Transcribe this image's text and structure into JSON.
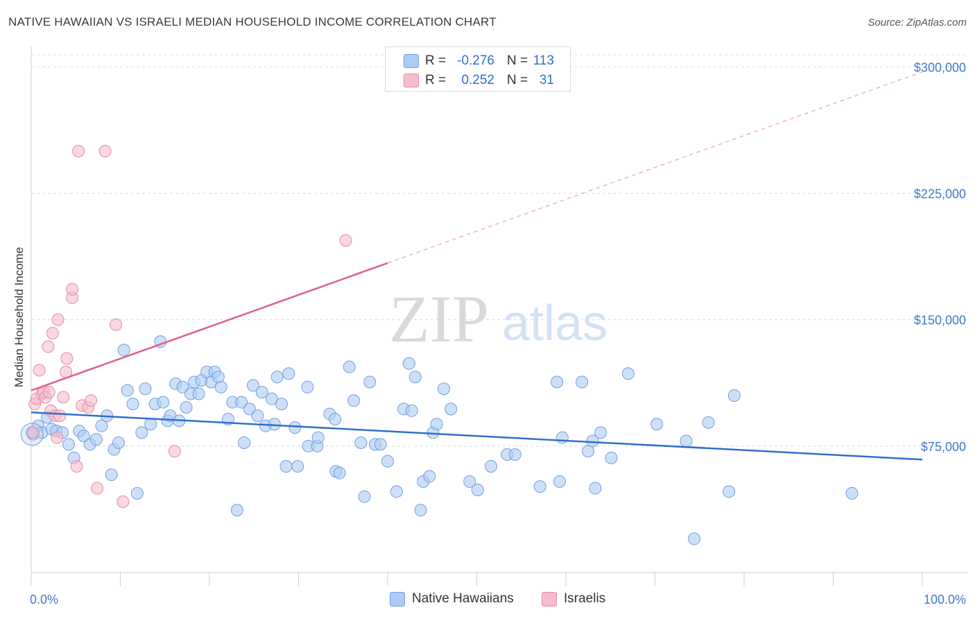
{
  "title": "NATIVE HAWAIIAN VS ISRAELI MEDIAN HOUSEHOLD INCOME CORRELATION CHART",
  "source": "Source: ZipAtlas.com",
  "legend": {
    "rows": [
      {
        "r_label": "R =",
        "r_value": "-0.276",
        "n_label": "N =",
        "n_value": "113"
      },
      {
        "r_label": "R =",
        "r_value": "0.252",
        "n_label": "N =",
        "n_value": "31"
      }
    ]
  },
  "bottom_legend": {
    "native": "Native Hawaiians",
    "israeli": "Israelis"
  },
  "colors": {
    "blue_fill": "#aecbf3",
    "blue_stroke": "#6f9fdf",
    "blue_line": "#2e6fce",
    "pink_fill": "#f6bccd",
    "pink_stroke": "#e58aa6",
    "pink_line": "#e0608a",
    "axis_text": "#3f79cf",
    "grid": "#dcdcdc"
  },
  "chart_data": {
    "type": "scatter",
    "title": "NATIVE HAWAIIAN VS ISRAELI MEDIAN HOUSEHOLD INCOME CORRELATION CHART",
    "xlabel": "",
    "ylabel": "Median Household Income",
    "xlim": [
      0,
      100
    ],
    "ylim": [
      0,
      310000
    ],
    "x_tick_labels": [
      "0.0%",
      "100.0%"
    ],
    "y_ticks": [
      75000,
      150000,
      225000,
      300000
    ],
    "y_tick_labels": [
      "$75,000",
      "$150,000",
      "$225,000",
      "$300,000"
    ],
    "grid": true,
    "watermark": {
      "zip": "ZIP",
      "atlas": "atlas"
    },
    "series": [
      {
        "name": "Native Hawaiians",
        "R": -0.276,
        "N": 113,
        "trend": {
          "x": [
            0,
            100
          ],
          "y": [
            95000,
            67000
          ],
          "dashed_from": null
        },
        "points": [
          [
            0.2,
            82000
          ],
          [
            0.8,
            87000
          ],
          [
            1.2,
            83000
          ],
          [
            1.8,
            92000
          ],
          [
            2.3,
            85000
          ],
          [
            2.8,
            84000
          ],
          [
            3.5,
            83000
          ],
          [
            4.2,
            76000
          ],
          [
            4.8,
            68000
          ],
          [
            5.4,
            84000
          ],
          [
            5.9,
            81000
          ],
          [
            6.6,
            76000
          ],
          [
            7.3,
            79000
          ],
          [
            7.9,
            87000
          ],
          [
            8.5,
            93000
          ],
          [
            9.0,
            58000
          ],
          [
            9.3,
            73000
          ],
          [
            9.8,
            77000
          ],
          [
            10.4,
            132000
          ],
          [
            10.8,
            108000
          ],
          [
            11.4,
            100000
          ],
          [
            11.9,
            47000
          ],
          [
            12.4,
            83000
          ],
          [
            12.8,
            109000
          ],
          [
            13.4,
            88000
          ],
          [
            13.9,
            100000
          ],
          [
            14.5,
            137000
          ],
          [
            14.8,
            101000
          ],
          [
            15.3,
            90000
          ],
          [
            15.6,
            93000
          ],
          [
            16.2,
            112000
          ],
          [
            16.6,
            90000
          ],
          [
            17.0,
            110000
          ],
          [
            17.4,
            98000
          ],
          [
            17.9,
            106000
          ],
          [
            18.3,
            113000
          ],
          [
            18.8,
            106000
          ],
          [
            19.1,
            114000
          ],
          [
            19.7,
            119000
          ],
          [
            20.2,
            113000
          ],
          [
            20.6,
            119000
          ],
          [
            21.0,
            116000
          ],
          [
            21.3,
            110000
          ],
          [
            22.1,
            91000
          ],
          [
            22.6,
            101000
          ],
          [
            23.1,
            37000
          ],
          [
            23.6,
            101000
          ],
          [
            23.9,
            77000
          ],
          [
            24.5,
            97000
          ],
          [
            24.9,
            111000
          ],
          [
            25.4,
            93000
          ],
          [
            25.9,
            107000
          ],
          [
            26.3,
            87000
          ],
          [
            27.0,
            103000
          ],
          [
            27.3,
            88000
          ],
          [
            27.6,
            116000
          ],
          [
            28.1,
            100000
          ],
          [
            28.6,
            63000
          ],
          [
            28.9,
            118000
          ],
          [
            29.6,
            86000
          ],
          [
            29.9,
            63000
          ],
          [
            31.0,
            110000
          ],
          [
            31.1,
            75000
          ],
          [
            32.1,
            75000
          ],
          [
            32.2,
            80000
          ],
          [
            33.5,
            94000
          ],
          [
            34.1,
            91000
          ],
          [
            34.2,
            60000
          ],
          [
            34.6,
            59000
          ],
          [
            35.7,
            122000
          ],
          [
            36.2,
            102000
          ],
          [
            37.0,
            77000
          ],
          [
            37.4,
            45000
          ],
          [
            38.0,
            113000
          ],
          [
            38.6,
            76000
          ],
          [
            39.2,
            76000
          ],
          [
            40.0,
            66000
          ],
          [
            41.0,
            48000
          ],
          [
            41.8,
            97000
          ],
          [
            42.4,
            124000
          ],
          [
            42.7,
            96000
          ],
          [
            43.1,
            116000
          ],
          [
            43.7,
            37000
          ],
          [
            44.0,
            54000
          ],
          [
            44.7,
            57000
          ],
          [
            45.1,
            83000
          ],
          [
            45.5,
            88000
          ],
          [
            46.3,
            109000
          ],
          [
            47.1,
            97000
          ],
          [
            49.2,
            54000
          ],
          [
            50.1,
            49000
          ],
          [
            51.6,
            63000
          ],
          [
            53.4,
            70000
          ],
          [
            54.3,
            70000
          ],
          [
            57.1,
            51000
          ],
          [
            59.0,
            113000
          ],
          [
            59.3,
            54000
          ],
          [
            59.6,
            80000
          ],
          [
            61.8,
            113000
          ],
          [
            62.5,
            72000
          ],
          [
            63.0,
            78000
          ],
          [
            63.3,
            50000
          ],
          [
            63.9,
            83000
          ],
          [
            65.1,
            68000
          ],
          [
            67.0,
            118000
          ],
          [
            70.2,
            88000
          ],
          [
            73.5,
            78000
          ],
          [
            74.4,
            20000
          ],
          [
            76.0,
            89000
          ],
          [
            78.3,
            48000
          ],
          [
            78.9,
            105000
          ],
          [
            92.1,
            47000
          ],
          [
            0.1,
            83000
          ]
        ]
      },
      {
        "name": "Israelis",
        "R": 0.252,
        "N": 31,
        "trend": {
          "x": [
            0,
            100
          ],
          "y": [
            108000,
            297000
          ],
          "dashed_from": 40
        },
        "points": [
          [
            0.2,
            83000
          ],
          [
            0.4,
            100000
          ],
          [
            0.6,
            103000
          ],
          [
            0.9,
            120000
          ],
          [
            1.2,
            106000
          ],
          [
            1.4,
            107000
          ],
          [
            1.6,
            104000
          ],
          [
            1.9,
            134000
          ],
          [
            2.0,
            107000
          ],
          [
            2.2,
            96000
          ],
          [
            2.4,
            142000
          ],
          [
            2.7,
            93000
          ],
          [
            2.9,
            80000
          ],
          [
            3.0,
            150000
          ],
          [
            3.2,
            93000
          ],
          [
            3.6,
            104000
          ],
          [
            3.9,
            119000
          ],
          [
            4.0,
            127000
          ],
          [
            4.6,
            163000
          ],
          [
            4.6,
            168000
          ],
          [
            5.1,
            63000
          ],
          [
            5.3,
            250000
          ],
          [
            5.7,
            99000
          ],
          [
            6.4,
            98000
          ],
          [
            6.7,
            102000
          ],
          [
            7.4,
            50000
          ],
          [
            8.3,
            250000
          ],
          [
            9.5,
            147000
          ],
          [
            10.3,
            42000
          ],
          [
            16.1,
            72000
          ],
          [
            35.3,
            197000
          ]
        ]
      }
    ]
  }
}
